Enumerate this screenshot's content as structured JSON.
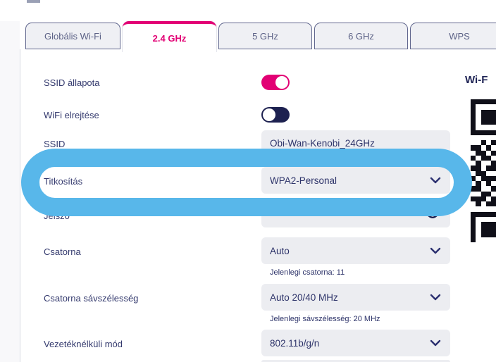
{
  "tabs": [
    {
      "label": "Globális Wi-Fi",
      "active": false
    },
    {
      "label": "2.4 GHz",
      "active": true
    },
    {
      "label": "5 GHz",
      "active": false
    },
    {
      "label": "6 GHz",
      "active": false
    },
    {
      "label": "WPS",
      "active": false
    }
  ],
  "form": {
    "rows": [
      {
        "type": "toggle",
        "label": "SSID állapota",
        "state": "on"
      },
      {
        "type": "toggle",
        "label": "WiFi elrejtése",
        "state": "off"
      },
      {
        "type": "input",
        "label": "SSID",
        "value": "Obi-Wan-Kenobi_24GHz"
      },
      {
        "type": "select",
        "label": "Titkosítás",
        "value": "WPA2-Personal",
        "highlighted": true
      },
      {
        "type": "password",
        "label": "Jelszó",
        "value": "••••••••••••••"
      },
      {
        "type": "select",
        "label": "Csatorna",
        "value": "Auto",
        "helper": "Jelenlegi csatorna: 11"
      },
      {
        "type": "select",
        "label": "Csatorna sávszélesség",
        "value": "Auto 20/40 MHz",
        "helper": "Jelenlegi sávszélesség: 20 MHz"
      },
      {
        "type": "select",
        "label": "Vezetéknélküli mód",
        "value": "802.11b/g/n"
      }
    ]
  },
  "qr_panel": {
    "heading": "Wi-F",
    "matrix": [
      "111111",
      "100000",
      "101110",
      "101111",
      "101110",
      "100000",
      "111111",
      "000000",
      "001011",
      "110100",
      "011010",
      "101101",
      "010011",
      "110110",
      "011001",
      "101110",
      "010101",
      "110010",
      "001101",
      "111010",
      "010110",
      "000001",
      "111111",
      "100000",
      "101110",
      "101110",
      "101110",
      "100000"
    ]
  },
  "annotation": {
    "color": "#58b7ea"
  },
  "colors": {
    "accent_magenta": "#e20074",
    "navy_dark": "#1d2150",
    "text_navy": "#343a6e",
    "field_bg": "#ecedf1",
    "highlight_blue": "#58b7ea"
  }
}
